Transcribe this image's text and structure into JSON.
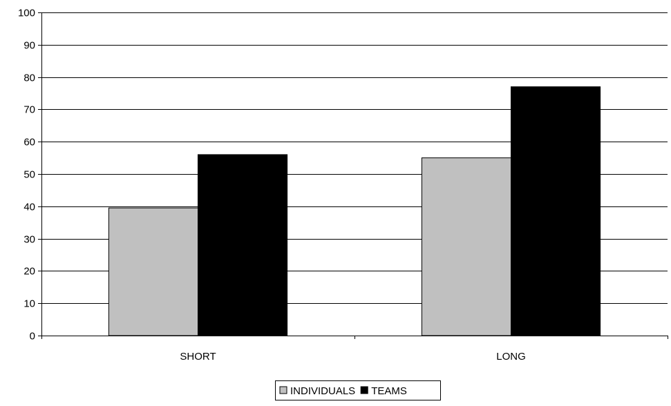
{
  "chart_data": {
    "type": "bar",
    "categories": [
      "SHORT",
      "LONG"
    ],
    "series": [
      {
        "name": "INDIVIDUALS",
        "values": [
          39.5,
          55
        ],
        "color": "#c0c0c0"
      },
      {
        "name": "TEAMS",
        "values": [
          56,
          77
        ],
        "color": "#000000"
      }
    ],
    "title": "",
    "xlabel": "",
    "ylabel": "",
    "ylim": [
      0,
      100
    ],
    "yticks": [
      0,
      10,
      20,
      30,
      40,
      50,
      60,
      70,
      80,
      90,
      100
    ],
    "grid": true,
    "legend_position": "bottom-center"
  }
}
